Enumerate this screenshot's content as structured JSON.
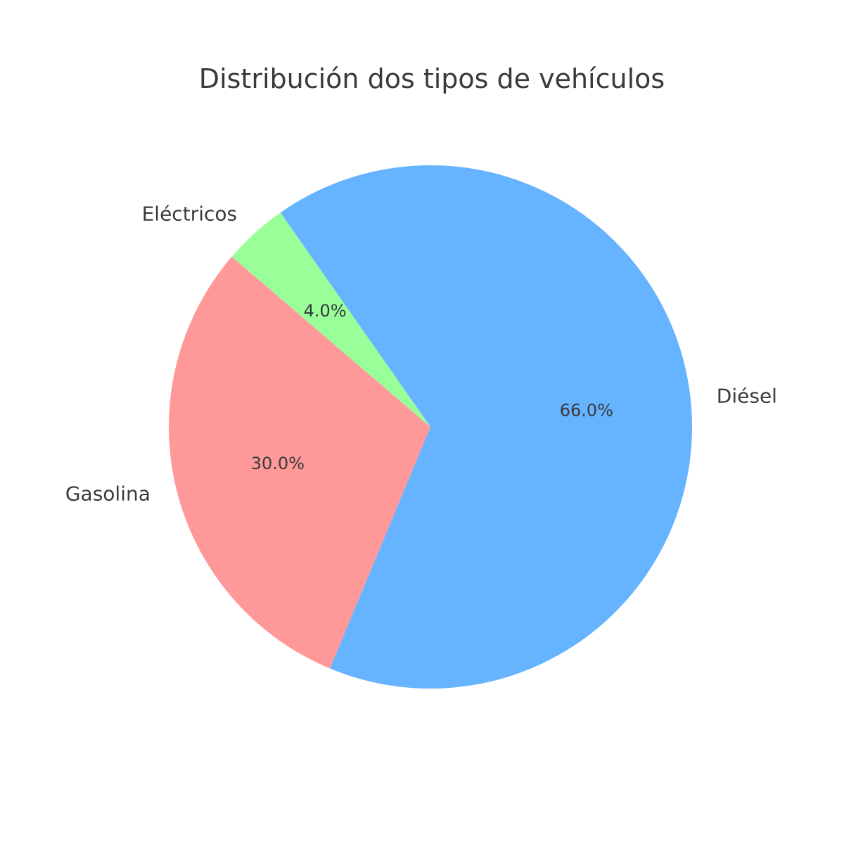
{
  "chart_data": {
    "type": "pie",
    "title": "Distribución dos tipos de vehículos",
    "labels": [
      "Diésel",
      "Gasolina",
      "Eléctricos"
    ],
    "values": [
      66.0,
      30.0,
      4.0
    ],
    "pct_labels": [
      "66.0%",
      "30.0%",
      "4.0%"
    ],
    "colors": [
      "#66b3ff",
      "#ff9999",
      "#99ff99"
    ],
    "text_color": "#3a3a3a",
    "background": "#ffffff",
    "start_angle": 125,
    "direction": "clockwise",
    "label_distance": 1.1,
    "pct_distance": 0.6,
    "legend": "none",
    "axes": "none"
  }
}
